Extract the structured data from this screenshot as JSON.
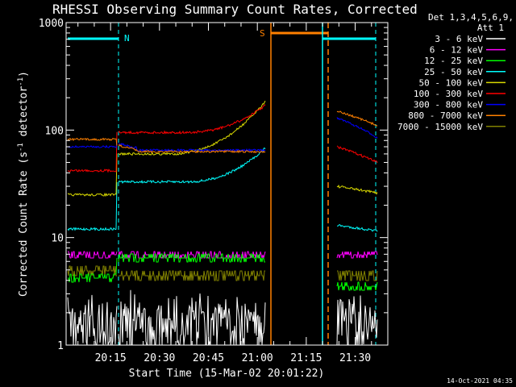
{
  "chart_data": {
    "type": "line",
    "title": "RHESSI Observing Summary Count Rates, Corrected",
    "xlabel": "Start Time (15-Mar-02 20:01:22)",
    "ylabel_main": "Corrected Count Rate (s",
    "ylabel_sup1": "-1",
    "ylabel_mid": " detector",
    "ylabel_sup2": "-1",
    "ylabel_end": ")",
    "y_scale": "log",
    "ylim": [
      1,
      1000
    ],
    "y_ticks": [
      {
        "value": 1,
        "label": "1"
      },
      {
        "value": 10,
        "label": "10"
      },
      {
        "value": 100,
        "label": "100"
      },
      {
        "value": 1000,
        "label": "1000"
      }
    ],
    "x_ticks": [
      "20:15",
      "20:30",
      "20:45",
      "21:00",
      "21:15",
      "21:30"
    ],
    "x_tick_minutes": [
      15,
      30,
      45,
      60,
      75,
      90
    ],
    "xlim_minutes": [
      1.37,
      100
    ],
    "legend_header": [
      "Det 1,3,4,5,6,9,",
      "Att 1"
    ],
    "legend_placement": "right",
    "series": [
      {
        "name": "3 - 6 keV",
        "color": "#ffffff"
      },
      {
        "name": "6 - 12 keV",
        "color": "#ff00ff"
      },
      {
        "name": "12 - 25 keV",
        "color": "#00ff00"
      },
      {
        "name": "25 - 50 keV",
        "color": "#00ffff"
      },
      {
        "name": "50 - 100 keV",
        "color": "#d8d800"
      },
      {
        "name": "100 - 300 keV",
        "color": "#ff0000"
      },
      {
        "name": "300 - 800 keV",
        "color": "#0000ff"
      },
      {
        "name": "800 - 7000 keV",
        "color": "#ff8000"
      },
      {
        "name": "7000 - 15000 keV",
        "color": "#808000"
      }
    ],
    "annotations": [
      {
        "label": "N",
        "color": "#00ffff"
      },
      {
        "label": "S",
        "color": "#ff8000"
      }
    ]
  },
  "footer": {
    "timestamp": "14-Oct-2021 04:35"
  }
}
